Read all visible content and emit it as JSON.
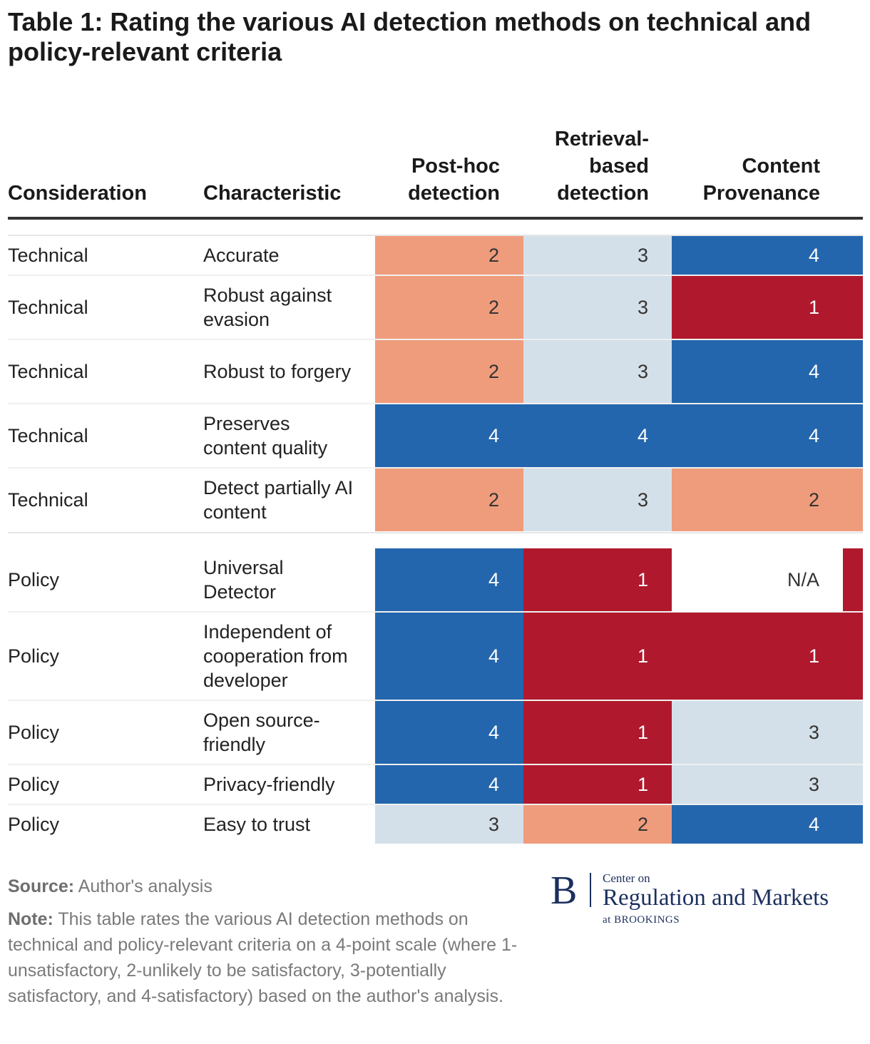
{
  "title": "Table 1: Rating the various AI detection methods on technical and policy-relevant criteria",
  "headers": {
    "consideration": "Consideration",
    "characteristic": "Characteristic",
    "posthoc": "Post-hoc\ndetection",
    "retrieval": "Retrieval-\nbased\ndetection",
    "provenance": "Content\nProvenance"
  },
  "colors": {
    "1": "#b0192d",
    "2": "#ef9c7d",
    "3": "#d4e0e9",
    "4": "#2366ad",
    "N/A": "#ffffff"
  },
  "chart_data": {
    "type": "table",
    "columns": [
      "Consideration",
      "Characteristic",
      "Post-hoc detection",
      "Retrieval-based detection",
      "Content Provenance"
    ],
    "rows": [
      {
        "consideration": "Technical",
        "characteristic": "Accurate",
        "values": [
          "2",
          "3",
          "4"
        ]
      },
      {
        "consideration": "Technical",
        "characteristic": "Robust against evasion",
        "values": [
          "2",
          "3",
          "1"
        ]
      },
      {
        "consideration": "Technical",
        "characteristic": "Robust to forgery",
        "values": [
          "2",
          "3",
          "4"
        ]
      },
      {
        "consideration": "Technical",
        "characteristic": "Preserves content quality",
        "values": [
          "4",
          "4",
          "4"
        ]
      },
      {
        "consideration": "Technical",
        "characteristic": "Detect partially AI content",
        "values": [
          "2",
          "3",
          "2"
        ]
      },
      {
        "consideration": "Policy",
        "characteristic": "Universal Detector",
        "values": [
          "4",
          "1",
          "N/A"
        ]
      },
      {
        "consideration": "Policy",
        "characteristic": "Independent of cooperation from developer",
        "values": [
          "4",
          "1",
          "1"
        ]
      },
      {
        "consideration": "Policy",
        "characteristic": "Open source-friendly",
        "values": [
          "4",
          "1",
          "3"
        ]
      },
      {
        "consideration": "Policy",
        "characteristic": "Privacy-friendly",
        "values": [
          "4",
          "1",
          "3"
        ]
      },
      {
        "consideration": "Policy",
        "characteristic": "Easy to trust",
        "values": [
          "3",
          "2",
          "4"
        ]
      }
    ],
    "scale": "4-point: 1-unsatisfactory, 2-unlikely to be satisfactory, 3-potentially satisfactory, 4-satisfactory"
  },
  "footer": {
    "source_label": "Source:",
    "source_text": " Author's analysis",
    "note_label": "Note:",
    "note_text": " This table rates the various AI detection methods on technical and policy-relevant criteria on a 4-point scale (where 1-unsatisfactory, 2-unlikely to be satisfactory, 3-potentially satisfactory, and 4-satisfactory) based on the author's analysis."
  },
  "logo": {
    "mark": "B",
    "line1": "Center on",
    "line2": "Regulation and Markets",
    "line3": "at BROOKINGS"
  }
}
